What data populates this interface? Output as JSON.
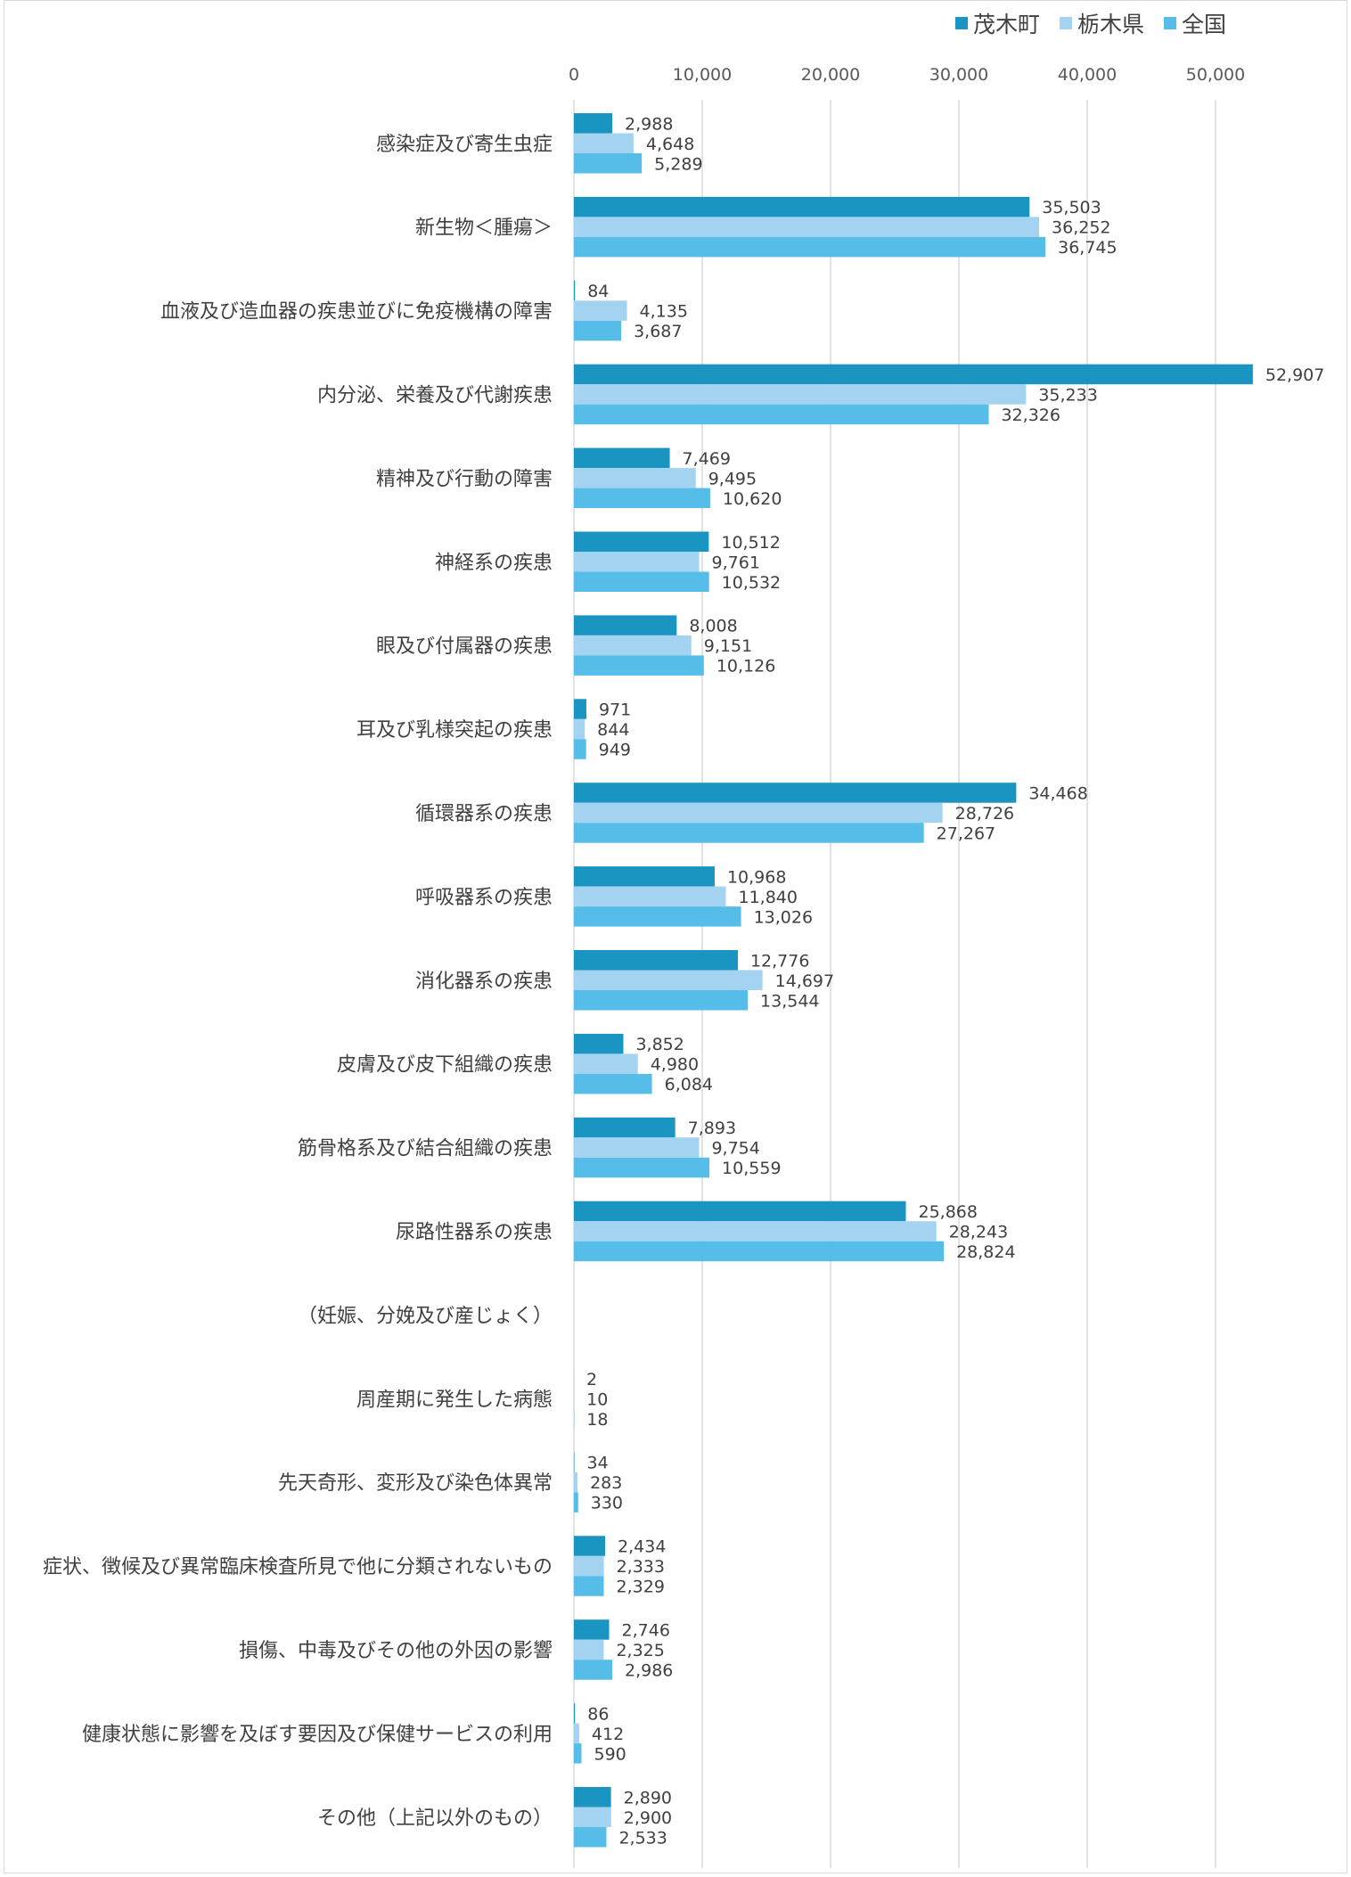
{
  "chart_data": {
    "type": "bar",
    "orientation": "horizontal",
    "categories": [
      "感染症及び寄生虫症",
      "新生物＜腫瘍＞",
      "血液及び造血器の疾患並びに免疫機構の障害",
      "内分泌、栄養及び代謝疾患",
      "精神及び行動の障害",
      "神経系の疾患",
      "眼及び付属器の疾患",
      "耳及び乳様突起の疾患",
      "循環器系の疾患",
      "呼吸器系の疾患",
      "消化器系の疾患",
      "皮膚及び皮下組織の疾患",
      "筋骨格系及び結合組織の疾患",
      "尿路性器系の疾患",
      "（妊娠、分娩及び産じょく）",
      "周産期に発生した病態",
      "先天奇形、変形及び染色体異常",
      "症状、徴候及び異常臨床検査所見で他に分類されないもの",
      "損傷、中毒及びその他の外因の影響",
      "健康状態に影響を及ぼす要因及び保健サービスの利用",
      "その他（上記以外のもの）"
    ],
    "series": [
      {
        "name": "茂木町",
        "color": "#1a94c0",
        "values": [
          2988,
          35503,
          84,
          52907,
          7469,
          10512,
          8008,
          971,
          34468,
          10968,
          12776,
          3852,
          7893,
          25868,
          null,
          2,
          34,
          2434,
          2746,
          86,
          2890
        ],
        "labels": [
          "2,988",
          "35,503",
          "84",
          "52,907",
          "7,469",
          "10,512",
          "8,008",
          "971",
          "34,468",
          "10,968",
          "12,776",
          "3,852",
          "7,893",
          "25,868",
          "",
          "2",
          "34",
          "2,434",
          "2,746",
          "86",
          "2,890"
        ]
      },
      {
        "name": "栃木県",
        "color": "#a3d3f0",
        "values": [
          4648,
          36252,
          4135,
          35233,
          9495,
          9761,
          9151,
          844,
          28726,
          11840,
          14697,
          4980,
          9754,
          28243,
          null,
          10,
          283,
          2333,
          2325,
          412,
          2900
        ],
        "labels": [
          "4,648",
          "36,252",
          "4,135",
          "35,233",
          "9,495",
          "9,761",
          "9,151",
          "844",
          "28,726",
          "11,840",
          "14,697",
          "4,980",
          "9,754",
          "28,243",
          "",
          "10",
          "283",
          "2,333",
          "2,325",
          "412",
          "2,900"
        ]
      },
      {
        "name": "全国",
        "color": "#55bde8",
        "values": [
          5289,
          36745,
          3687,
          32326,
          10620,
          10532,
          10126,
          949,
          27267,
          13026,
          13544,
          6084,
          10559,
          28824,
          null,
          18,
          330,
          2329,
          2986,
          590,
          2533
        ],
        "labels": [
          "5,289",
          "36,745",
          "3,687",
          "32,326",
          "10,620",
          "10,532",
          "10,126",
          "949",
          "27,267",
          "13,026",
          "13,544",
          "6,084",
          "10,559",
          "28,824",
          "",
          "18",
          "330",
          "2,329",
          "2,986",
          "590",
          "2,533"
        ]
      }
    ],
    "xlim": [
      0,
      55000
    ],
    "xticks": [
      0,
      10000,
      20000,
      30000,
      40000,
      50000
    ],
    "xtick_labels": [
      "0",
      "10,000",
      "20,000",
      "30,000",
      "40,000",
      "50,000"
    ],
    "grid": true,
    "legend_position": "top-right"
  }
}
